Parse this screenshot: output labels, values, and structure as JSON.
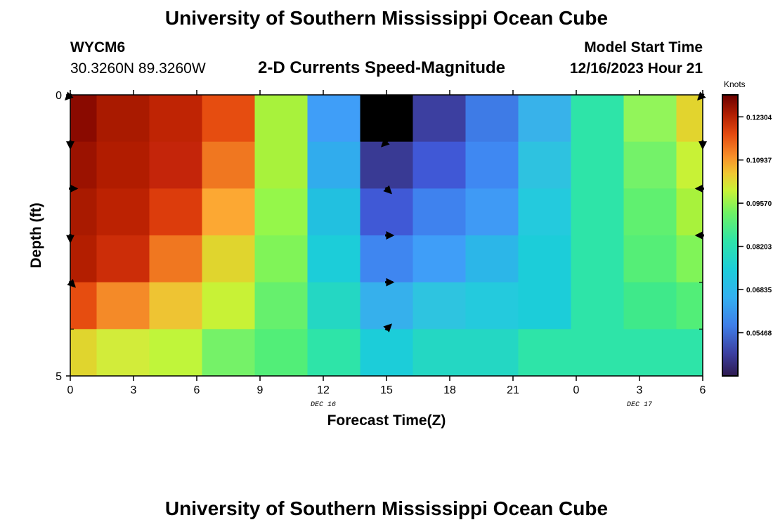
{
  "page": {
    "title": "University of Southern Mississippi Ocean Cube",
    "title_repeat": "University of Southern Mississippi Ocean Cube",
    "station": "WYCM6",
    "coords": "30.3260N  89.3260W",
    "subtitle": "2-D Currents Speed-Magnitude",
    "start_label": "Model Start Time",
    "start_value": "12/16/2023 Hour 21"
  },
  "chart_data": {
    "type": "heatmap",
    "title": "2-D Currents Speed-Magnitude",
    "xlabel": "Forecast Time(Z)",
    "ylabel": "Depth (ft)",
    "x_ticks": [
      "0",
      "3",
      "6",
      "9",
      "12",
      "15",
      "18",
      "21",
      "0",
      "3",
      "6"
    ],
    "x_date_labels": [
      {
        "text": "DEC 16",
        "at_tick": 4
      },
      {
        "text": "DEC 17",
        "at_tick": 9
      }
    ],
    "y_ticks": [
      "0",
      "5"
    ],
    "ylim": [
      0,
      5
    ],
    "colorbar": {
      "label": "Knots",
      "range": [
        0.041,
        0.13
      ],
      "ticks": [
        "0.12304",
        "0.10937",
        "0.09570",
        "0.08203",
        "0.06835",
        "0.05468"
      ],
      "tick_values": [
        0.12304,
        0.10937,
        0.0957,
        0.08203,
        0.06835,
        0.05468
      ]
    },
    "cell_colors": [
      [
        "#8a0a00",
        "#a91a00",
        "#bf2404",
        "#e64d10",
        "#a8f23c",
        "#3f9ef8",
        "#000000",
        "#3c3fa0",
        "#3e7be6",
        "#38b2ea",
        "#2ee4a8",
        "#92f55a",
        "#e2d42e"
      ],
      [
        "#9b1200",
        "#b11c00",
        "#c4250a",
        "#f07720",
        "#a8f23c",
        "#31aced",
        "#393a94",
        "#4058d6",
        "#3f88f2",
        "#2ec2e0",
        "#2ee4a8",
        "#74f269",
        "#c8f236"
      ],
      [
        "#a91a00",
        "#bc2202",
        "#dc3c0c",
        "#fca833",
        "#95f74a",
        "#22c0e0",
        "#4059d6",
        "#3f82ee",
        "#3f9af5",
        "#24cadd",
        "#2ee4a8",
        "#60f070",
        "#a8f23c"
      ],
      [
        "#b31e00",
        "#cc2d08",
        "#f07720",
        "#e0d52e",
        "#80f458",
        "#1ccdd9",
        "#3f86f0",
        "#3f9ef8",
        "#2cb6e8",
        "#1ccdd9",
        "#2ee4a8",
        "#55ee77",
        "#80f458"
      ],
      [
        "#e64d10",
        "#f48a28",
        "#eec433",
        "#c8f236",
        "#66f06d",
        "#24d7c3",
        "#36b0ec",
        "#2ec4e0",
        "#24cadd",
        "#1ccdd9",
        "#2ee4a8",
        "#3fe98a",
        "#52ee78"
      ],
      [
        "#e0d52e",
        "#d2ec3a",
        "#c0f53a",
        "#75f268",
        "#52ee78",
        "#2ee4a8",
        "#1ccdd9",
        "#24d7c3",
        "#24d7c3",
        "#2ee4a8",
        "#2ee4a8",
        "#2ee4a8",
        "#2ee4a8"
      ]
    ],
    "arrows": [
      {
        "col": 0,
        "row": 0,
        "dir": "sw"
      },
      {
        "col": 0,
        "row": 1,
        "dir": "s"
      },
      {
        "col": 0,
        "row": 2,
        "dir": "e"
      },
      {
        "col": 0,
        "row": 3,
        "dir": "s"
      },
      {
        "col": 0,
        "row": 4,
        "dir": "se"
      },
      {
        "col": 6,
        "row": 1,
        "dir": "sw"
      },
      {
        "col": 6,
        "row": 2,
        "dir": "se"
      },
      {
        "col": 6,
        "row": 3,
        "dir": "e"
      },
      {
        "col": 6,
        "row": 4,
        "dir": "e"
      },
      {
        "col": 6,
        "row": 5,
        "dir": "ne"
      },
      {
        "col": 12,
        "row": 0,
        "dir": "sw"
      },
      {
        "col": 12,
        "row": 1,
        "dir": "s"
      },
      {
        "col": 12,
        "row": 2,
        "dir": "w"
      },
      {
        "col": 12,
        "row": 3,
        "dir": "w"
      }
    ]
  }
}
